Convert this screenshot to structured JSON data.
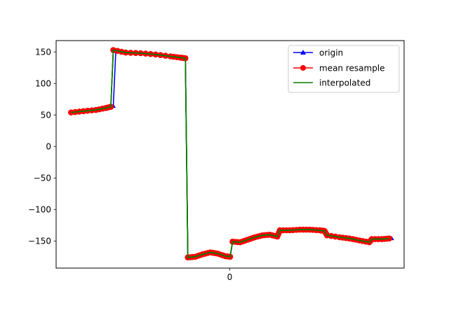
{
  "chart_data": {
    "type": "line",
    "title": "",
    "xlabel": "",
    "ylabel": "",
    "ylim": [
      -193,
      168
    ],
    "yticks": [
      150,
      100,
      50,
      0,
      -50,
      -100,
      -150
    ],
    "ytick_labels": [
      "150",
      "100",
      "50",
      "0",
      "−50",
      "−100",
      "−150"
    ],
    "xticks": [
      0
    ],
    "xtick_labels": [
      "0"
    ],
    "grid": false,
    "legend_position": "top-right",
    "series": [
      {
        "name": "origin",
        "color": "#0000ff",
        "marker": "triangle",
        "points": [
          [
            0,
            55
          ],
          [
            5,
            57
          ],
          [
            10,
            59
          ],
          [
            14,
            62
          ],
          [
            17,
            64
          ],
          [
            18,
            151
          ],
          [
            22,
            149
          ],
          [
            28,
            148
          ],
          [
            34,
            146
          ],
          [
            40,
            143
          ],
          [
            44,
            141
          ],
          [
            46,
            140
          ],
          [
            47,
            -176
          ],
          [
            50,
            -175
          ],
          [
            53,
            -171
          ],
          [
            56,
            -168
          ],
          [
            59,
            -170
          ],
          [
            62,
            -174
          ],
          [
            64,
            -175
          ],
          [
            65,
            -151
          ],
          [
            68,
            -151
          ],
          [
            71,
            -148
          ],
          [
            74,
            -144
          ],
          [
            77,
            -141
          ],
          [
            80,
            -140
          ],
          [
            83,
            -142
          ],
          [
            84,
            -133
          ],
          [
            88,
            -133
          ],
          [
            92,
            -132
          ],
          [
            96,
            -132
          ],
          [
            100,
            -133
          ],
          [
            102,
            -133
          ],
          [
            103,
            -141
          ],
          [
            108,
            -144
          ],
          [
            112,
            -146
          ],
          [
            116,
            -149
          ],
          [
            120,
            -151
          ],
          [
            121,
            -147
          ],
          [
            125,
            -147
          ],
          [
            129,
            -146
          ]
        ]
      },
      {
        "name": "mean resample",
        "color": "#ff0000",
        "marker": "circle",
        "points": [
          [
            0,
            54
          ],
          [
            5,
            56
          ],
          [
            10,
            58
          ],
          [
            14,
            61
          ],
          [
            16,
            63
          ],
          [
            17,
            153
          ],
          [
            22,
            149
          ],
          [
            28,
            148
          ],
          [
            34,
            146
          ],
          [
            40,
            143
          ],
          [
            44,
            141
          ],
          [
            46,
            140
          ],
          [
            47,
            -176
          ],
          [
            50,
            -175
          ],
          [
            53,
            -171
          ],
          [
            56,
            -168
          ],
          [
            59,
            -170
          ],
          [
            62,
            -174
          ],
          [
            64,
            -175
          ],
          [
            65,
            -151
          ],
          [
            68,
            -152
          ],
          [
            71,
            -148
          ],
          [
            74,
            -144
          ],
          [
            77,
            -141
          ],
          [
            80,
            -140
          ],
          [
            83,
            -143
          ],
          [
            84,
            -133
          ],
          [
            88,
            -133
          ],
          [
            92,
            -132
          ],
          [
            96,
            -132
          ],
          [
            100,
            -133
          ],
          [
            102,
            -134
          ],
          [
            103,
            -141
          ],
          [
            108,
            -144
          ],
          [
            112,
            -146
          ],
          [
            116,
            -149
          ],
          [
            120,
            -152
          ],
          [
            121,
            -147
          ],
          [
            125,
            -147
          ],
          [
            128,
            -146
          ]
        ]
      },
      {
        "name": "interpolated",
        "color": "#008000",
        "marker": "none",
        "points": [
          [
            0,
            54
          ],
          [
            5,
            56
          ],
          [
            10,
            58
          ],
          [
            14,
            61
          ],
          [
            16,
            63
          ],
          [
            17,
            153
          ],
          [
            22,
            149
          ],
          [
            28,
            148
          ],
          [
            34,
            146
          ],
          [
            40,
            143
          ],
          [
            44,
            141
          ],
          [
            46,
            140
          ],
          [
            47,
            -176
          ],
          [
            50,
            -175
          ],
          [
            53,
            -171
          ],
          [
            56,
            -168
          ],
          [
            59,
            -170
          ],
          [
            62,
            -174
          ],
          [
            64,
            -175
          ],
          [
            65,
            -151
          ],
          [
            68,
            -152
          ],
          [
            71,
            -148
          ],
          [
            74,
            -144
          ],
          [
            77,
            -141
          ],
          [
            80,
            -140
          ],
          [
            83,
            -143
          ],
          [
            84,
            -133
          ],
          [
            88,
            -133
          ],
          [
            92,
            -132
          ],
          [
            96,
            -132
          ],
          [
            100,
            -133
          ],
          [
            102,
            -134
          ],
          [
            103,
            -141
          ],
          [
            108,
            -144
          ],
          [
            112,
            -146
          ],
          [
            116,
            -149
          ],
          [
            120,
            -152
          ],
          [
            121,
            -147
          ],
          [
            125,
            -147
          ],
          [
            128,
            -146
          ]
        ]
      }
    ]
  }
}
